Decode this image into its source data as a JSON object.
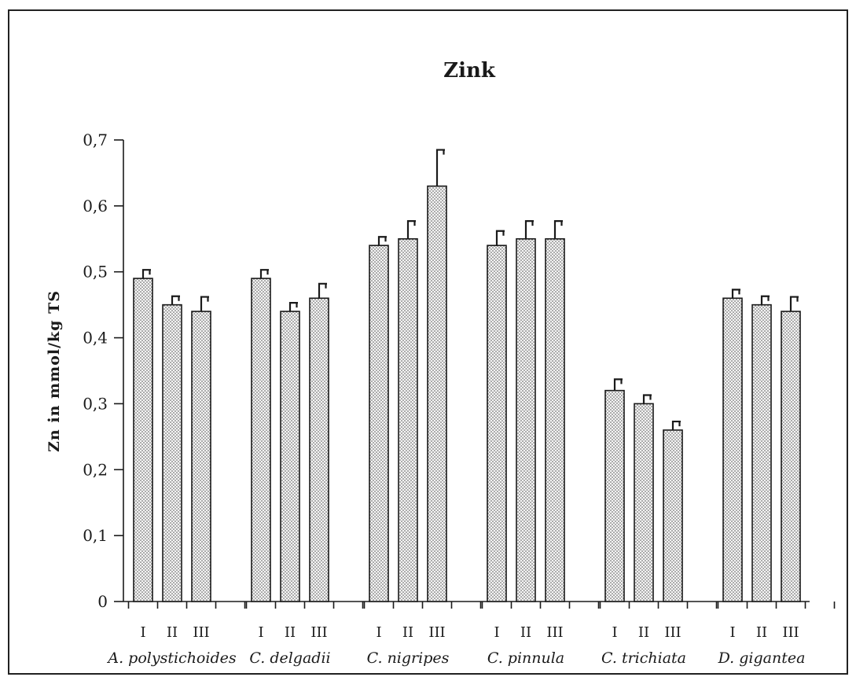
{
  "chart_data": {
    "type": "bar",
    "title": "Zink",
    "ylabel": "Zn in mmol/kg TS",
    "xlabel": "",
    "ylim": [
      0,
      0.7
    ],
    "yticks": [
      "0",
      "0,1",
      "0,2",
      "0,3",
      "0,4",
      "0,5",
      "0,6",
      "0,7"
    ],
    "ytick_values": [
      0,
      0.1,
      0.2,
      0.3,
      0.4,
      0.5,
      0.6,
      0.7
    ],
    "subcategories": [
      "I",
      "II",
      "III"
    ],
    "categories": [
      "A. polystichoides",
      "C. delgadii",
      "C. nigripes",
      "C. pinnula",
      "C. trichiata",
      "D. gigantea"
    ],
    "values": [
      [
        0.49,
        0.45,
        0.44
      ],
      [
        0.49,
        0.44,
        0.46
      ],
      [
        0.54,
        0.55,
        0.63
      ],
      [
        0.54,
        0.55,
        0.55
      ],
      [
        0.32,
        0.3,
        0.26
      ],
      [
        0.46,
        0.45,
        0.44
      ]
    ],
    "errors": [
      [
        0.013,
        0.013,
        0.022
      ],
      [
        0.013,
        0.013,
        0.022
      ],
      [
        0.013,
        0.027,
        0.055
      ],
      [
        0.022,
        0.027,
        0.027
      ],
      [
        0.017,
        0.013,
        0.013
      ],
      [
        0.013,
        0.013,
        0.022
      ]
    ],
    "grid": false,
    "legend": "none",
    "bar_fill": "dotted",
    "colors": {
      "ink": "#1a1a1a",
      "background": "#ffffff"
    }
  }
}
